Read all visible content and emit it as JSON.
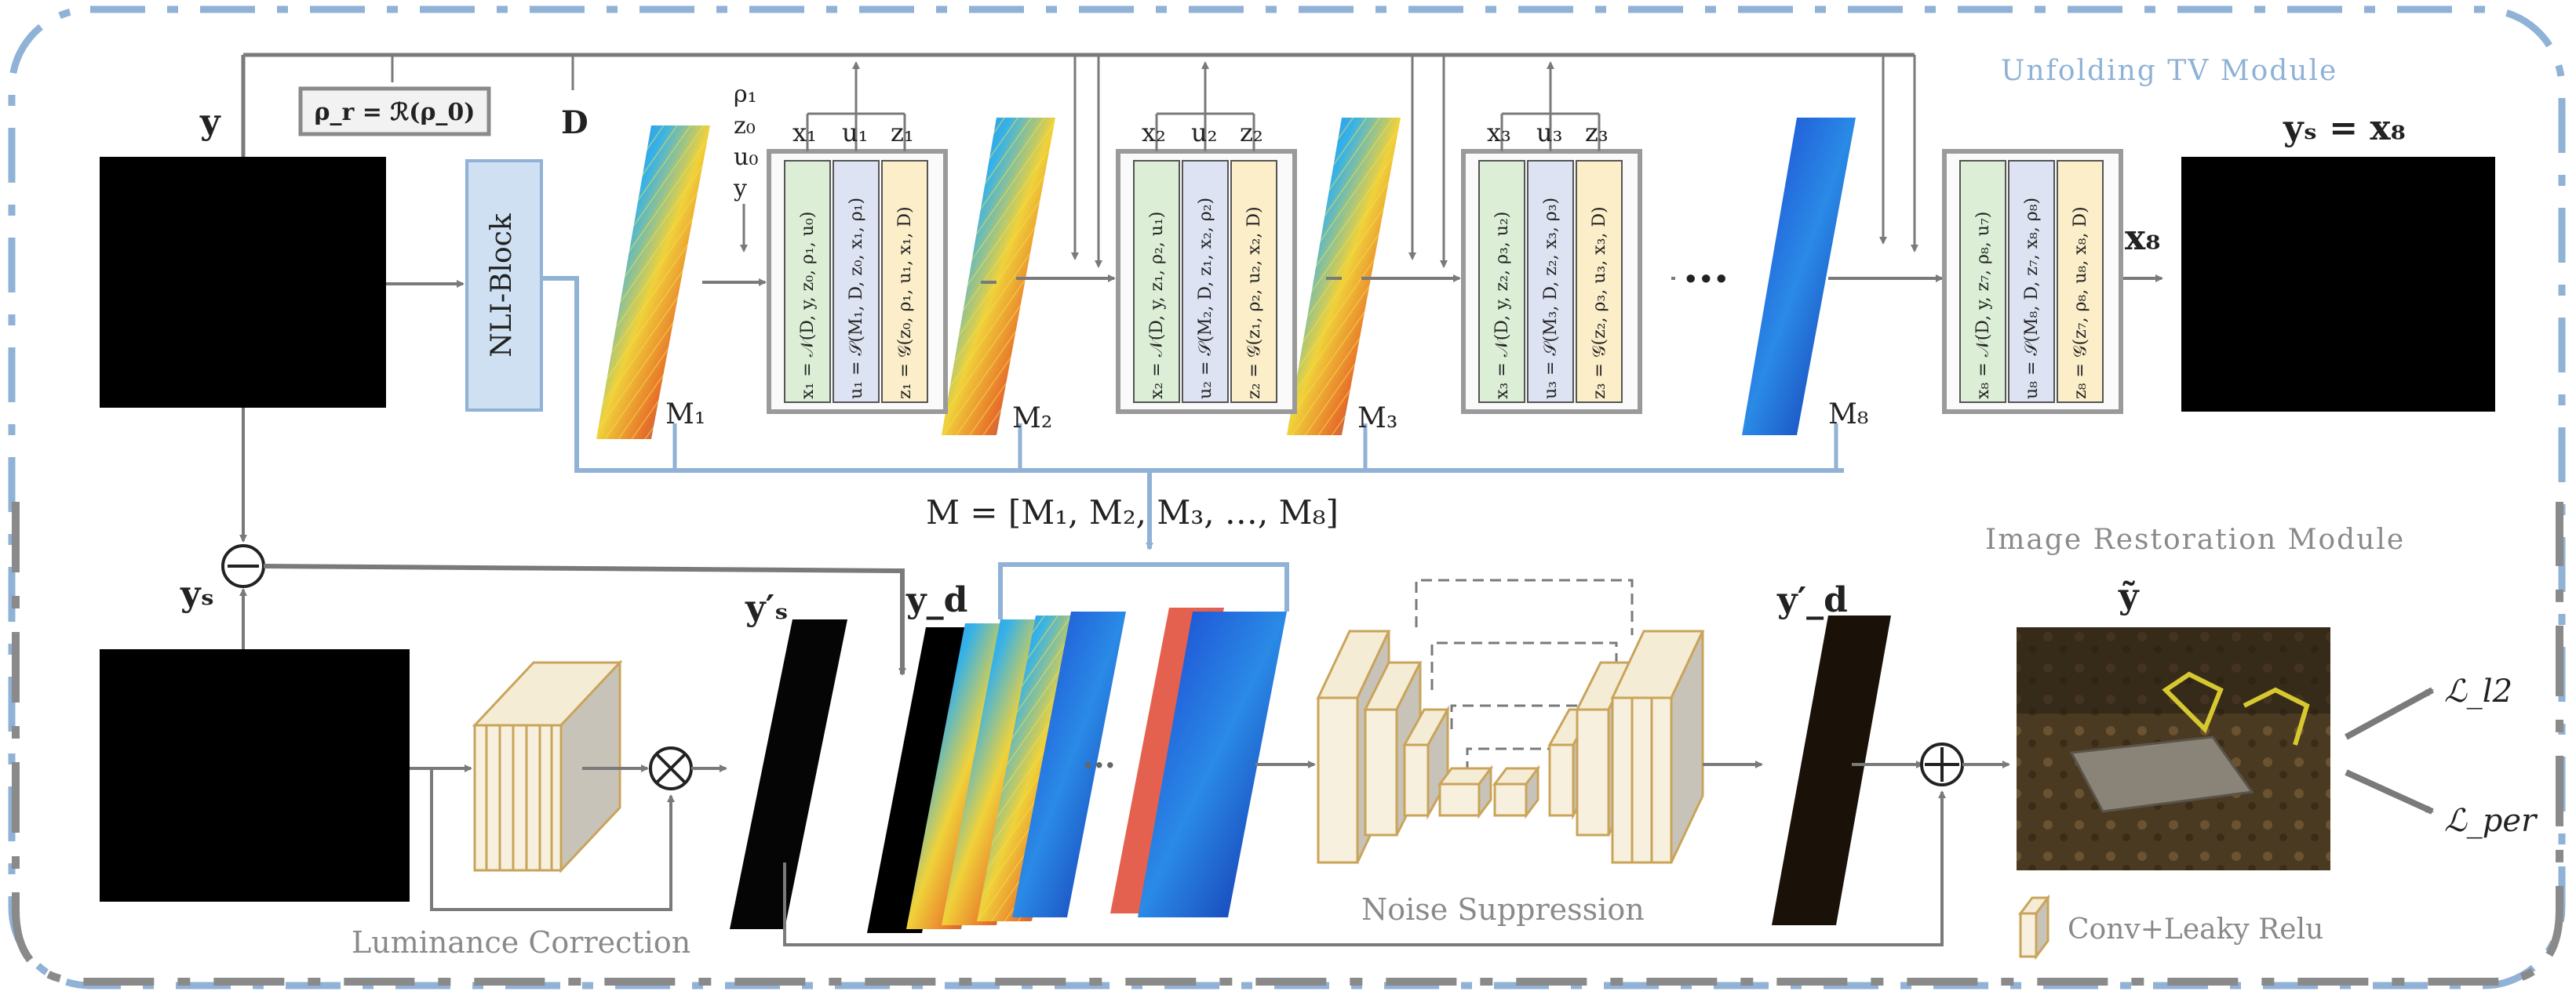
{
  "modules": {
    "unfolding_title": "Unfolding  TV  Module",
    "restoration_title": "Image Restoration Module",
    "colors": {
      "unfolding": "#8fb2d6",
      "restoration": "#8a8a8a",
      "accent_line": "#8fb2d6"
    }
  },
  "inputs": {
    "y": "y",
    "rho_eq": "ρ_r = ℛ(ρ_0)",
    "D": "D",
    "init_vars": [
      "ρ₁",
      "z₀",
      "u₀",
      "y"
    ],
    "ys_minus": "yₛ",
    "ys_out": "yₛ = x₈",
    "x8": "x₈"
  },
  "nli_block": "NLI-Block",
  "maps": [
    "M₁",
    "M₂",
    "M₃",
    "M₈"
  ],
  "m_equation": "M = [M₁, M₂, M₃, …, M₈]",
  "ellipsis": "···",
  "stages": [
    {
      "outputs": [
        "x₁",
        "u₁",
        "z₁"
      ],
      "eqs": [
        "x₁ = 𝒩(D, y, z₀, ρ₁, u₀)",
        "u₁ = 𝒮(M₁, D, z₀, x₁, ρ₁)",
        "z₁ = 𝒢(z₀, ρ₁, u₁, x₁, D)"
      ]
    },
    {
      "outputs": [
        "x₂",
        "u₂",
        "z₂"
      ],
      "eqs": [
        "x₂ = 𝒩(D, y, z₁, ρ₂, u₁)",
        "u₂ = 𝒮(M₂, D, z₁, x₂, ρ₂)",
        "z₂ = 𝒢(z₁, ρ₂, u₂, x₂, D)"
      ]
    },
    {
      "outputs": [
        "x₃",
        "u₃",
        "z₃"
      ],
      "eqs": [
        "x₃ = 𝒩(D, y, z₂, ρ₃, u₂)",
        "u₃ = 𝒮(M₃, D, z₂, x₃, ρ₃)",
        "z₃ = 𝒢(z₂, ρ₃, u₃, x₃, D)"
      ]
    },
    {
      "outputs": [],
      "eqs": [
        "x₈ = 𝒩(D, y, z₇, ρ₈, u₇)",
        "u₈ = 𝒮(M₈, D, z₇, x₈, ρ₈)",
        "z₈ = 𝒢(z₇, ρ₈, u₈, x₈, D)"
      ]
    }
  ],
  "restoration": {
    "ys_prime": "y′ₛ",
    "yd": "y_d",
    "yd_prime": "y′_d",
    "y_tilde": "ỹ",
    "luminance_correction": "Luminance  Correction",
    "noise_suppression": "Noise Suppression",
    "loss_l2": "ℒ_l2",
    "loss_per": "ℒ_per",
    "legend": "Conv+Leaky Relu"
  }
}
